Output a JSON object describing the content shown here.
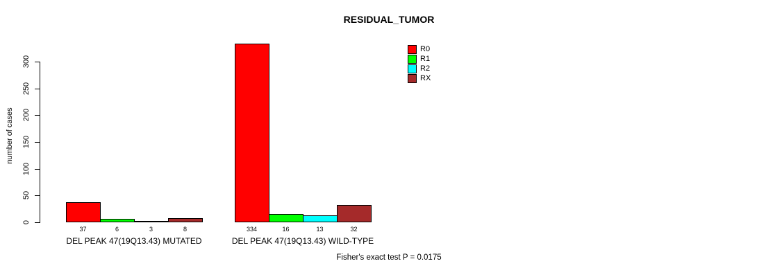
{
  "chart_data": {
    "type": "bar",
    "title": "RESIDUAL_TUMOR",
    "xlabel": "",
    "ylabel": "number of cases",
    "categories": [
      "DEL PEAK 47(19Q13.43) MUTATED",
      "DEL PEAK 47(19Q13.43) WILD-TYPE"
    ],
    "series": [
      {
        "name": "R0",
        "color": "#FF0000",
        "values": [
          37,
          334
        ]
      },
      {
        "name": "R1",
        "color": "#00FF00",
        "values": [
          6,
          16
        ]
      },
      {
        "name": "R2",
        "color": "#00FFFF",
        "values": [
          3,
          13
        ]
      },
      {
        "name": "RX",
        "color": "#A52A2A",
        "values": [
          8,
          32
        ]
      }
    ],
    "yticks": [
      0,
      50,
      100,
      150,
      200,
      250,
      300
    ],
    "ylim": [
      0,
      300
    ],
    "bar_value_labels_shown": true,
    "grid": false,
    "legend_position": "top-right",
    "annotation": "Fisher's exact test P = 0.0175"
  }
}
